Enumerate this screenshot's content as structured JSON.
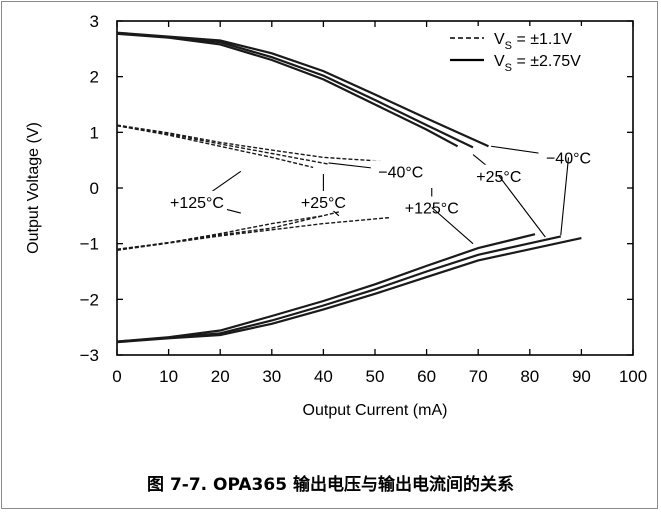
{
  "caption": "图 7-7. OPA365 输出电压与输出电流间的关系",
  "chart_data": {
    "type": "line",
    "xlabel": "Output Current (mA)",
    "ylabel": "Output Voltage (V)",
    "xlim": [
      0,
      100
    ],
    "ylim": [
      -3,
      3
    ],
    "xticks": [
      "0",
      "10",
      "20",
      "30",
      "40",
      "50",
      "60",
      "70",
      "80",
      "90",
      "100"
    ],
    "yticks": [
      "3",
      "2",
      "1",
      "0",
      "−1",
      "−2",
      "−3"
    ],
    "grid": false,
    "legend_position": "top-right",
    "legend": [
      {
        "label_main": "V",
        "label_sub": "S",
        "label_rest": " = ±1.1V",
        "style": "dashed"
      },
      {
        "label_main": "V",
        "label_sub": "S",
        "label_rest": " = ±2.75V",
        "style": "solid"
      }
    ],
    "series": [
      {
        "supply": "±2.75V",
        "temp": "+125°C",
        "rail": "high",
        "style": "solid",
        "points": [
          [
            0,
            2.77
          ],
          [
            10,
            2.7
          ],
          [
            20,
            2.58
          ],
          [
            30,
            2.3
          ],
          [
            40,
            1.95
          ],
          [
            50,
            1.5
          ],
          [
            60,
            1.05
          ],
          [
            66,
            0.75
          ]
        ]
      },
      {
        "supply": "±2.75V",
        "temp": "+25°C",
        "rail": "high",
        "style": "solid",
        "points": [
          [
            0,
            2.78
          ],
          [
            10,
            2.71
          ],
          [
            20,
            2.62
          ],
          [
            30,
            2.35
          ],
          [
            40,
            2.02
          ],
          [
            50,
            1.58
          ],
          [
            60,
            1.13
          ],
          [
            69,
            0.73
          ]
        ]
      },
      {
        "supply": "±2.75V",
        "temp": "−40°C",
        "rail": "high",
        "style": "solid",
        "points": [
          [
            0,
            2.79
          ],
          [
            10,
            2.72
          ],
          [
            20,
            2.65
          ],
          [
            30,
            2.42
          ],
          [
            40,
            2.1
          ],
          [
            50,
            1.68
          ],
          [
            60,
            1.25
          ],
          [
            72,
            0.75
          ]
        ]
      },
      {
        "supply": "±2.75V",
        "temp": "+125°C",
        "rail": "low",
        "style": "solid",
        "points": [
          [
            0,
            -2.76
          ],
          [
            10,
            -2.68
          ],
          [
            20,
            -2.56
          ],
          [
            30,
            -2.3
          ],
          [
            40,
            -2.03
          ],
          [
            50,
            -1.73
          ],
          [
            60,
            -1.4
          ],
          [
            70,
            -1.08
          ],
          [
            81,
            -0.83
          ]
        ]
      },
      {
        "supply": "±2.75V",
        "temp": "+25°C",
        "rail": "low",
        "style": "solid",
        "points": [
          [
            0,
            -2.76
          ],
          [
            10,
            -2.69
          ],
          [
            20,
            -2.61
          ],
          [
            30,
            -2.38
          ],
          [
            40,
            -2.11
          ],
          [
            50,
            -1.82
          ],
          [
            60,
            -1.5
          ],
          [
            70,
            -1.2
          ],
          [
            86,
            -0.87
          ]
        ]
      },
      {
        "supply": "±2.75V",
        "temp": "−40°C",
        "rail": "low",
        "style": "solid",
        "points": [
          [
            0,
            -2.77
          ],
          [
            10,
            -2.7
          ],
          [
            20,
            -2.64
          ],
          [
            30,
            -2.44
          ],
          [
            40,
            -2.18
          ],
          [
            50,
            -1.9
          ],
          [
            60,
            -1.6
          ],
          [
            70,
            -1.3
          ],
          [
            90,
            -0.9
          ]
        ]
      },
      {
        "supply": "±1.1V",
        "temp": "+125°C",
        "rail": "high",
        "style": "dashed",
        "points": [
          [
            0,
            1.12
          ],
          [
            10,
            0.95
          ],
          [
            20,
            0.75
          ],
          [
            30,
            0.55
          ],
          [
            38,
            0.37
          ]
        ]
      },
      {
        "supply": "±1.1V",
        "temp": "+25°C",
        "rail": "high",
        "style": "dashed",
        "points": [
          [
            0,
            1.12
          ],
          [
            10,
            0.97
          ],
          [
            20,
            0.79
          ],
          [
            30,
            0.62
          ],
          [
            41,
            0.43
          ]
        ]
      },
      {
        "supply": "±1.1V",
        "temp": "−40°C",
        "rail": "high",
        "style": "dashed",
        "points": [
          [
            0,
            1.13
          ],
          [
            10,
            0.99
          ],
          [
            20,
            0.82
          ],
          [
            30,
            0.68
          ],
          [
            40,
            0.55
          ],
          [
            53,
            0.47
          ]
        ]
      },
      {
        "supply": "±1.1V",
        "temp": "+125°C",
        "rail": "low",
        "style": "dashed",
        "points": [
          [
            0,
            -1.1
          ],
          [
            10,
            -0.98
          ],
          [
            20,
            -0.82
          ],
          [
            30,
            -0.64
          ],
          [
            40,
            -0.5
          ]
        ]
      },
      {
        "supply": "±1.1V",
        "temp": "+25°C",
        "rail": "low",
        "style": "dashed",
        "points": [
          [
            0,
            -1.11
          ],
          [
            10,
            -0.98
          ],
          [
            20,
            -0.84
          ],
          [
            30,
            -0.72
          ],
          [
            43,
            -0.43
          ]
        ]
      },
      {
        "supply": "±1.1V",
        "temp": "−40°C",
        "rail": "low",
        "style": "dashed",
        "points": [
          [
            0,
            -1.12
          ],
          [
            10,
            -0.99
          ],
          [
            20,
            -0.86
          ],
          [
            30,
            -0.75
          ],
          [
            40,
            -0.64
          ],
          [
            53,
            -0.53
          ]
        ]
      }
    ],
    "annotations": [
      {
        "text": "−40°C",
        "at": [
          87.5,
          0.55
        ],
        "pointers": [
          [
            72.5,
            0.75
          ],
          [
            85,
            0.55
          ]
        ]
      },
      {
        "text": "−40°C",
        "at": [
          55,
          0.3
        ],
        "pointers": [
          [
            41,
            0.45
          ],
          [
            52,
            0.35
          ]
        ]
      },
      {
        "text": "+25°C",
        "at": [
          74,
          0.22
        ],
        "pointers": [
          [
            69,
            0.6
          ],
          [
            72,
            0.35
          ]
        ]
      },
      {
        "text": "+125°C",
        "at": [
          61,
          -0.35
        ],
        "pointers": [
          [
            61,
            0.0
          ]
        ]
      },
      {
        "text": "+125°C",
        "at": [
          15.5,
          -0.25
        ],
        "pointers": [
          [
            24,
            0.3
          ],
          [
            24,
            -0.45
          ]
        ]
      },
      {
        "text": "+25°C",
        "at": [
          40,
          -0.25
        ],
        "pointers": [
          [
            40,
            0.25
          ],
          [
            43,
            -0.5
          ]
        ]
      },
      {
        "text": "+125°C",
        "at": [
          61,
          -0.35
        ],
        "pointers": [
          [
            69,
            -1.0
          ]
        ]
      },
      {
        "text": "+25°C",
        "at": [
          74,
          0.22
        ],
        "pointers": [
          [
            83,
            -0.88
          ]
        ]
      },
      {
        "text": "−40°C",
        "at": [
          87.5,
          0.55
        ],
        "pointers": [
          [
            86,
            -0.85
          ]
        ]
      }
    ]
  }
}
